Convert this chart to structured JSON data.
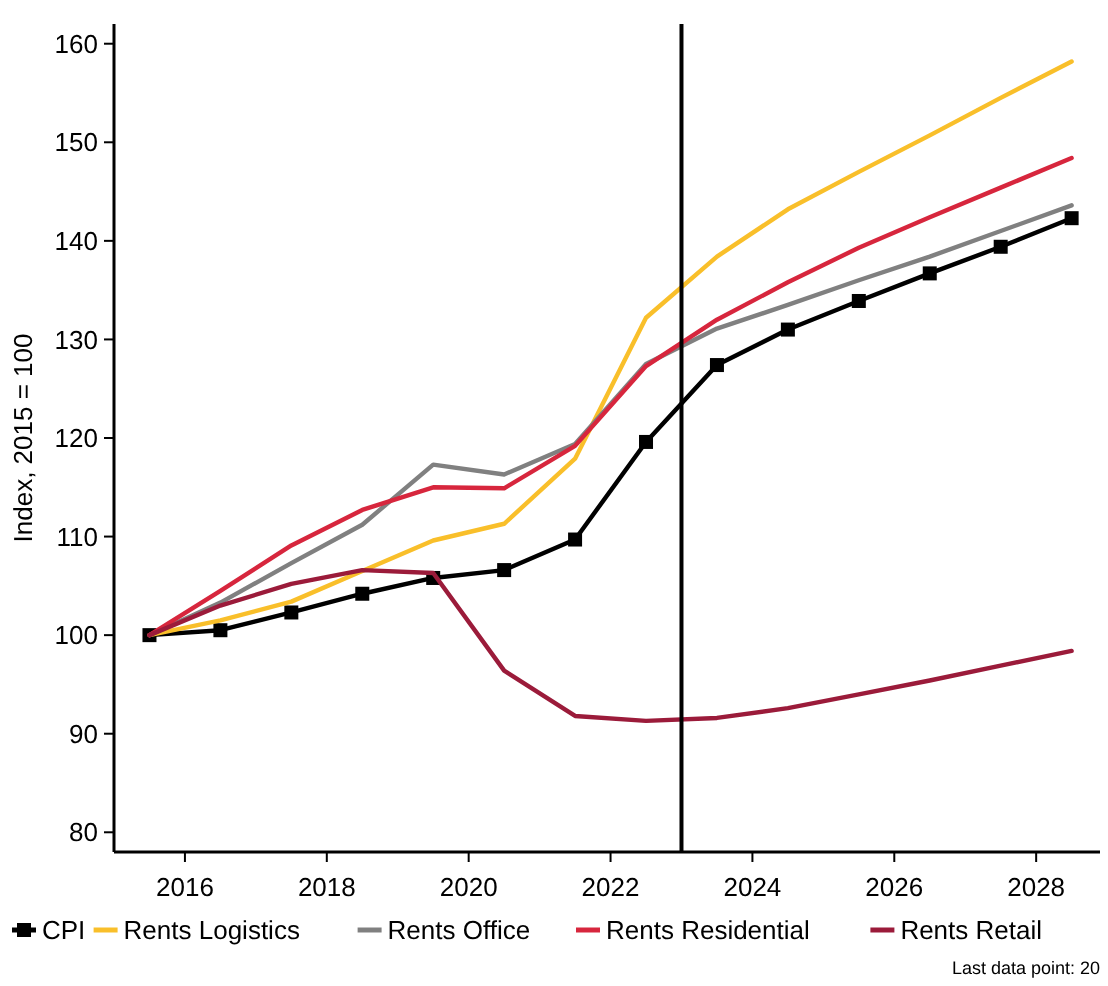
{
  "chart_data": {
    "type": "line",
    "ylabel": "Index, 2015 = 100",
    "x": [
      2015.5,
      2016.5,
      2017.5,
      2018.5,
      2019.5,
      2020.5,
      2021.5,
      2022.5,
      2023.5,
      2024.5,
      2025.5,
      2026.5,
      2027.5,
      2028.5
    ],
    "xlim": [
      2015,
      2028.9
    ],
    "xticks": [
      2016,
      2018,
      2020,
      2022,
      2024,
      2026,
      2028
    ],
    "ylim": [
      78,
      162
    ],
    "yticks": [
      80,
      90,
      100,
      110,
      120,
      130,
      140,
      150,
      160
    ],
    "series": [
      {
        "name": "CPI",
        "color": "#000000",
        "marker": "square",
        "values": [
          100,
          100.5,
          102.3,
          104.2,
          105.8,
          106.6,
          109.7,
          119.6,
          127.4,
          131.0,
          133.9,
          136.7,
          139.4,
          142.3
        ]
      },
      {
        "name": "Rents Logistics",
        "color": "#f9bf2a",
        "values": [
          100,
          101.5,
          103.4,
          106.5,
          109.6,
          111.3,
          117.9,
          132.2,
          138.4,
          143.2,
          147.0,
          150.7,
          154.5,
          158.2
        ]
      },
      {
        "name": "Rents Office",
        "color": "#808080",
        "values": [
          100,
          103.3,
          107.3,
          111.2,
          117.3,
          116.3,
          119.4,
          127.5,
          131.1,
          133.5,
          136.0,
          138.4,
          141.0,
          143.6
        ]
      },
      {
        "name": "Rents Residential",
        "color": "#d7263d",
        "values": [
          100,
          104.5,
          109.1,
          112.7,
          115.0,
          114.9,
          119.2,
          127.3,
          132.0,
          135.8,
          139.3,
          142.4,
          145.4,
          148.4
        ]
      },
      {
        "name": "Rents Retail",
        "color": "#9b1b3a",
        "values": [
          100,
          103.0,
          105.2,
          106.6,
          106.3,
          96.4,
          91.8,
          91.3,
          91.6,
          92.6,
          94.0,
          95.4,
          96.9,
          98.4
        ]
      }
    ],
    "ref_lines": [
      {
        "axis": "x",
        "value": 2023,
        "color": "#000000"
      }
    ],
    "grid": false,
    "legend": "bottom",
    "marker": "none",
    "annotations": [
      "Last data point: 20"
    ]
  }
}
